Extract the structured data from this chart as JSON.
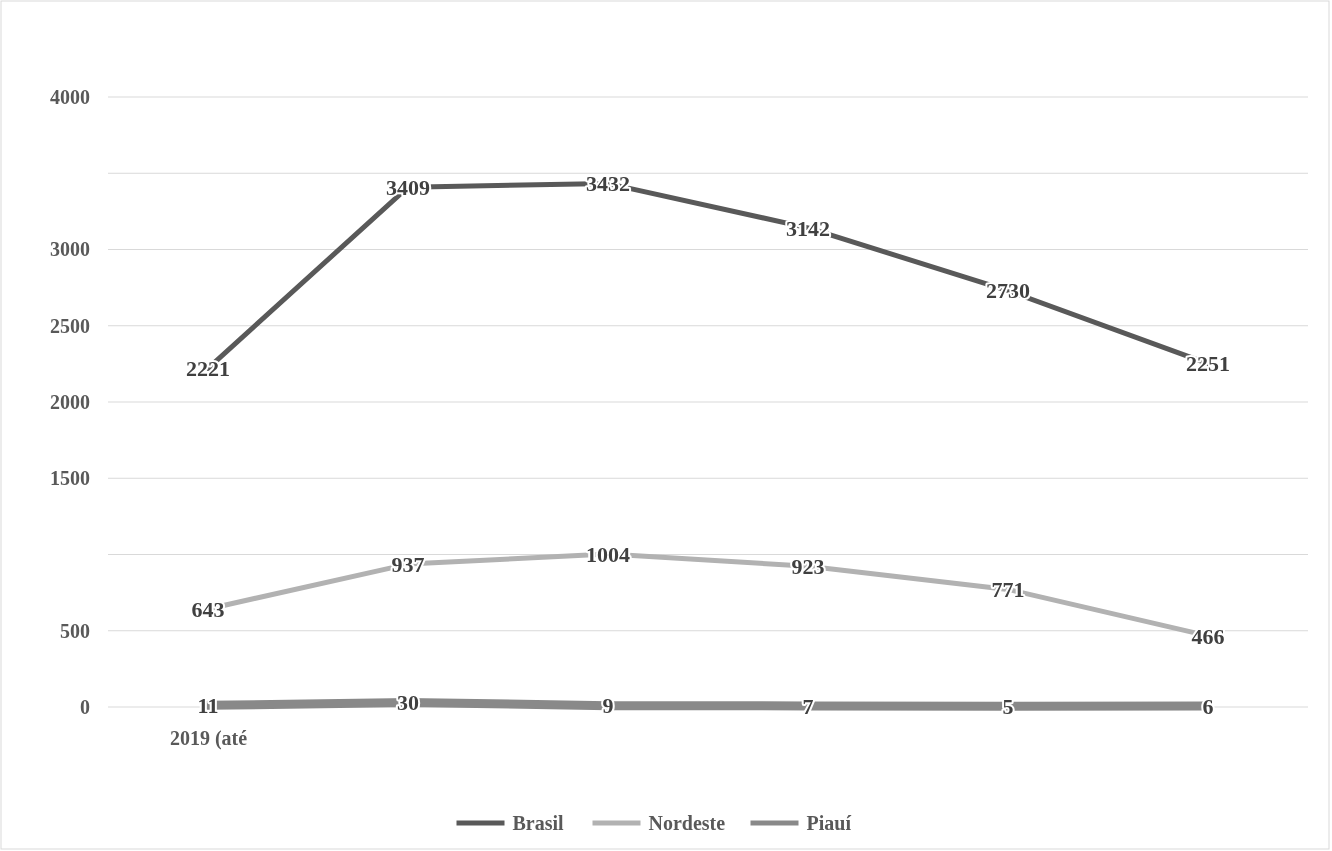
{
  "chart_data": {
    "type": "line",
    "categories": [
      "2019 (até",
      null,
      null,
      null,
      null,
      null
    ],
    "series": [
      {
        "name": "Brasil",
        "color": "#595959",
        "values": [
          2221,
          3409,
          3432,
          3142,
          2730,
          2251
        ]
      },
      {
        "name": "Nordeste",
        "color": "#b2b2b2",
        "values": [
          643,
          937,
          1004,
          923,
          771,
          466
        ]
      },
      {
        "name": "Piauí",
        "color": "#898989",
        "values": [
          11,
          30,
          9,
          7,
          5,
          6
        ]
      }
    ],
    "ylim": [
      0,
      4000
    ],
    "yticks": [
      0,
      500,
      {
        "value": 1000,
        "label": null
      },
      1500,
      2000,
      2500,
      3000,
      {
        "value": 3500,
        "label": null
      },
      4000
    ],
    "grid": "y",
    "legend": "bottom",
    "data_labels": true,
    "marker": "none",
    "line_style": "solid"
  }
}
